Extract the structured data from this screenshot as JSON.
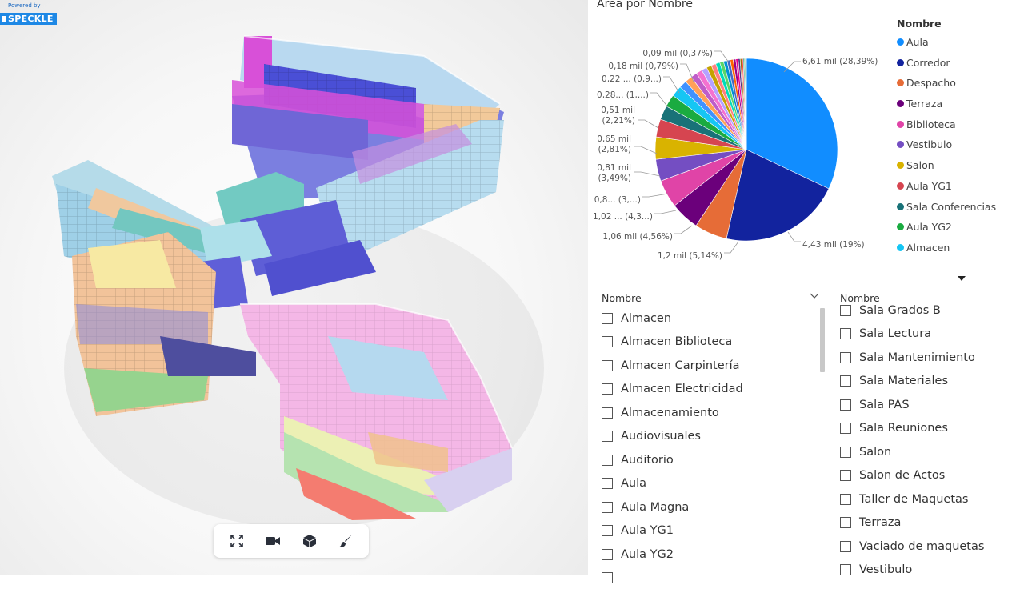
{
  "viewer": {
    "badge_small": "Powered by",
    "badge_logo": "SPECKLE",
    "toolbar": [
      {
        "name": "fullscreen-icon"
      },
      {
        "name": "camera-icon"
      },
      {
        "name": "cube-icon"
      },
      {
        "name": "paint-brush-icon"
      }
    ]
  },
  "chart_data": {
    "type": "pie",
    "title": "Área por Nombre",
    "legend_title": "Nombre",
    "legend_placement": "right",
    "slices": [
      {
        "name": "Aula",
        "value": 6.61,
        "label": "6,61 mil (28,39%)",
        "percent": 28.39,
        "color": "#118dff"
      },
      {
        "name": "Corredor",
        "value": 4.43,
        "label": "4,43 mil (19%)",
        "percent": 19.0,
        "color": "#12239e"
      },
      {
        "name": "Despacho",
        "value": 1.2,
        "label": "1,2 mil (5,14%)",
        "percent": 5.14,
        "color": "#e66c37"
      },
      {
        "name": "Terraza",
        "value": 1.06,
        "label": "1,06 mil (4,56%)",
        "percent": 4.56,
        "color": "#6b007b"
      },
      {
        "name": "Biblioteca",
        "value": 1.02,
        "label": "1,02 ... (4,3...)",
        "percent": 4.38,
        "color": "#e044a7"
      },
      {
        "name": "Vestibulo",
        "value": 0.8,
        "label": "0,8... (3,...)",
        "percent": 3.44,
        "color": "#744ec2"
      },
      {
        "name": "Salon",
        "value": 0.81,
        "label": "0,81 mil (3,49%)",
        "percent": 3.49,
        "color": "#d9b300"
      },
      {
        "name": "Aula YG1",
        "value": 0.65,
        "label": "0,65 mil (2,81%)",
        "percent": 2.81,
        "color": "#d64550"
      },
      {
        "name": "Sala Conferencias",
        "value": 0.51,
        "label": "0,51 mil (2,21%)",
        "percent": 2.21,
        "color": "#197278"
      },
      {
        "name": "Aula YG2",
        "value": 0.45,
        "label": "",
        "percent": 1.95,
        "color": "#1aab40"
      },
      {
        "name": "Almacen",
        "value": 0.4,
        "label": "",
        "percent": 1.72,
        "color": "#15c6f4"
      },
      {
        "name": "",
        "value": 0.28,
        "label": "0,28... (1,...)",
        "percent": 1.2,
        "color": "#4092ff"
      },
      {
        "name": "",
        "value": 0.26,
        "label": "",
        "percent": 1.1,
        "color": "#ffa058"
      },
      {
        "name": "",
        "value": 0.24,
        "label": "",
        "percent": 1.0,
        "color": "#be5dc9"
      },
      {
        "name": "",
        "value": 0.22,
        "label": "0,22 ... (0,9...)",
        "percent": 0.95,
        "color": "#f472d0"
      },
      {
        "name": "",
        "value": 0.2,
        "label": "",
        "percent": 0.86,
        "color": "#b5a1ff"
      },
      {
        "name": "",
        "value": 0.18,
        "label": "0,18 mil (0,79%)",
        "percent": 0.79,
        "color": "#c4a200"
      },
      {
        "name": "",
        "value": 0.17,
        "label": "",
        "percent": 0.73,
        "color": "#ff8080"
      },
      {
        "name": "",
        "value": 0.15,
        "label": "",
        "percent": 0.66,
        "color": "#00dbbc"
      },
      {
        "name": "",
        "value": 0.14,
        "label": "",
        "percent": 0.6,
        "color": "#5bd667"
      },
      {
        "name": "",
        "value": 0.13,
        "label": "",
        "percent": 0.55,
        "color": "#0091d5"
      },
      {
        "name": "",
        "value": 0.12,
        "label": "",
        "percent": 0.5,
        "color": "#4668c5"
      },
      {
        "name": "",
        "value": 0.11,
        "label": "",
        "percent": 0.46,
        "color": "#ff6300"
      },
      {
        "name": "",
        "value": 0.1,
        "label": "",
        "percent": 0.42,
        "color": "#99008a"
      },
      {
        "name": "",
        "value": 0.09,
        "label": "0,09 mil (0,37%)",
        "percent": 0.37,
        "color": "#ec008c"
      },
      {
        "name": "",
        "value": 0.07,
        "label": "",
        "percent": 0.3,
        "color": "#533285"
      },
      {
        "name": "",
        "value": 0.06,
        "label": "",
        "percent": 0.26,
        "color": "#99700a"
      },
      {
        "name": "",
        "value": 0.05,
        "label": "",
        "percent": 0.22,
        "color": "#ff4141"
      },
      {
        "name": "",
        "value": 0.04,
        "label": "",
        "percent": 0.18,
        "color": "#1f9a85"
      },
      {
        "name": "",
        "value": 0.03,
        "label": "",
        "percent": 0.14,
        "color": "#25891c"
      },
      {
        "name": "",
        "value": 0.02,
        "label": "",
        "percent": 0.1,
        "color": "#57b2ff"
      },
      {
        "name": "",
        "value": 0.02,
        "label": "",
        "percent": 0.08,
        "color": "#d3a200"
      }
    ]
  },
  "slicer_left": {
    "header": "Nombre",
    "items": [
      "Almacen",
      "Almacen Biblioteca",
      "Almacen Carpintería",
      "Almacen Electricidad",
      "Almacenamiento",
      "Audiovisuales",
      "Auditorio",
      "Aula",
      "Aula Magna",
      "Aula YG1",
      "Aula YG2",
      ""
    ]
  },
  "slicer_right": {
    "header": "Nombre",
    "items": [
      "Sala Grados B",
      "Sala Lectura",
      "Sala Mantenimiento",
      "Sala Materiales",
      "Sala PAS",
      "Sala Reuniones",
      "Salon",
      "Salon de Actos",
      "Taller de Maquetas",
      "Terraza",
      "Vaciado de maquetas",
      "Vestibulo"
    ]
  }
}
